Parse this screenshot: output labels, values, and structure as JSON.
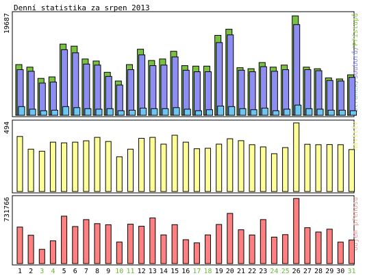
{
  "title": "Denní statistika za srpen 2013",
  "chart_data": [
    {
      "type": "bar",
      "panel": "requests",
      "ymax_label": "19687",
      "ylim": [
        0,
        19687
      ],
      "side_label_parts": [
        {
          "text": "Stránek",
          "color": "#66ccee"
        },
        {
          "text": "/",
          "color": "#888888"
        },
        {
          "text": "Souborů",
          "color": "#8888ee"
        },
        {
          "text": "/",
          "color": "#888888"
        },
        {
          "text": "Přístupů",
          "color": "#88cc44"
        }
      ],
      "categories": [
        "1",
        "2",
        "3",
        "4",
        "5",
        "6",
        "7",
        "8",
        "9",
        "10",
        "11",
        "12",
        "13",
        "14",
        "15",
        "16",
        "17",
        "18",
        "19",
        "20",
        "21",
        "22",
        "23",
        "24",
        "25",
        "26",
        "27",
        "28",
        "29",
        "30",
        "31"
      ],
      "series": [
        {
          "name": "Přístupů",
          "color": "#7ac143",
          "values": [
            9900,
            9400,
            7200,
            7500,
            13900,
            13500,
            11000,
            10600,
            8400,
            6700,
            9900,
            12900,
            10700,
            11000,
            12500,
            9700,
            9600,
            9600,
            15600,
            16800,
            9300,
            9100,
            10300,
            9400,
            9800,
            19400,
            9400,
            9100,
            7300,
            7100,
            7900
          ]
        },
        {
          "name": "Souborů",
          "color": "#8e8ef2",
          "values": [
            8900,
            8600,
            6300,
            6500,
            12800,
            12200,
            10000,
            9800,
            7600,
            5900,
            8900,
            11800,
            9700,
            9800,
            11400,
            8800,
            8500,
            8500,
            14200,
            15700,
            8800,
            8500,
            9500,
            8600,
            8900,
            17700,
            8900,
            8700,
            6800,
            6700,
            7400
          ]
        },
        {
          "name": "Stránek",
          "color": "#6cc6f0",
          "values": [
            1700,
            1200,
            900,
            1000,
            1700,
            1500,
            1300,
            1200,
            1300,
            900,
            1000,
            1400,
            1300,
            1300,
            1500,
            1200,
            900,
            1100,
            1800,
            1700,
            1300,
            1100,
            1400,
            900,
            1200,
            2000,
            1300,
            1200,
            1000,
            1000,
            900
          ]
        }
      ]
    },
    {
      "type": "bar",
      "panel": "visits",
      "ymax_label": "494",
      "ylim": [
        0,
        494
      ],
      "side_label_parts": [
        {
          "text": "Návštěv",
          "color": "#eeee88"
        }
      ],
      "categories": [
        "1",
        "2",
        "3",
        "4",
        "5",
        "6",
        "7",
        "8",
        "9",
        "10",
        "11",
        "12",
        "13",
        "14",
        "15",
        "16",
        "17",
        "18",
        "19",
        "20",
        "21",
        "22",
        "23",
        "24",
        "25",
        "26",
        "27",
        "28",
        "29",
        "30",
        "31"
      ],
      "series": [
        {
          "name": "Návštěv",
          "color": "#ffff99",
          "values": [
            396,
            305,
            290,
            355,
            350,
            355,
            365,
            390,
            360,
            250,
            305,
            383,
            390,
            341,
            405,
            355,
            308,
            311,
            341,
            380,
            366,
            337,
            321,
            272,
            316,
            494,
            340,
            337,
            338,
            337,
            302
          ]
        }
      ]
    },
    {
      "type": "bar",
      "panel": "traffic",
      "ymax_label": "731766",
      "ylim": [
        0,
        731766
      ],
      "side_label_parts": [
        {
          "text": "Objem přenosu",
          "color": "#ee9999"
        }
      ],
      "categories": [
        "1",
        "2",
        "3",
        "4",
        "5",
        "6",
        "7",
        "8",
        "9",
        "10",
        "11",
        "12",
        "13",
        "14",
        "15",
        "16",
        "17",
        "18",
        "19",
        "20",
        "21",
        "22",
        "23",
        "24",
        "25",
        "26",
        "27",
        "28",
        "29",
        "30",
        "31"
      ],
      "series": [
        {
          "name": "Objem přenosu",
          "color": "#ff8080",
          "values": [
            410000,
            318000,
            160000,
            256000,
            532000,
            416000,
            494000,
            448000,
            436000,
            242000,
            442000,
            419000,
            512000,
            322000,
            437000,
            268000,
            233000,
            322000,
            439000,
            563000,
            380000,
            321000,
            494000,
            297000,
            325000,
            731000,
            403000,
            354000,
            386000,
            241000,
            264000
          ]
        }
      ]
    }
  ],
  "axis": {
    "day_labels": [
      "1",
      "2",
      "3",
      "4",
      "5",
      "6",
      "7",
      "8",
      "9",
      "10",
      "11",
      "12",
      "13",
      "14",
      "15",
      "16",
      "17",
      "18",
      "19",
      "20",
      "21",
      "22",
      "23",
      "24",
      "25",
      "26",
      "27",
      "28",
      "29",
      "30",
      "31"
    ],
    "weekend_days": [
      "3",
      "4",
      "10",
      "11",
      "17",
      "18",
      "24",
      "25",
      "31"
    ],
    "weekday_color": "#000000",
    "weekend_color": "#66bb33"
  },
  "colors": {
    "background": "#ffffff",
    "panel_border": "#000000",
    "bar_outline": "#000000"
  }
}
